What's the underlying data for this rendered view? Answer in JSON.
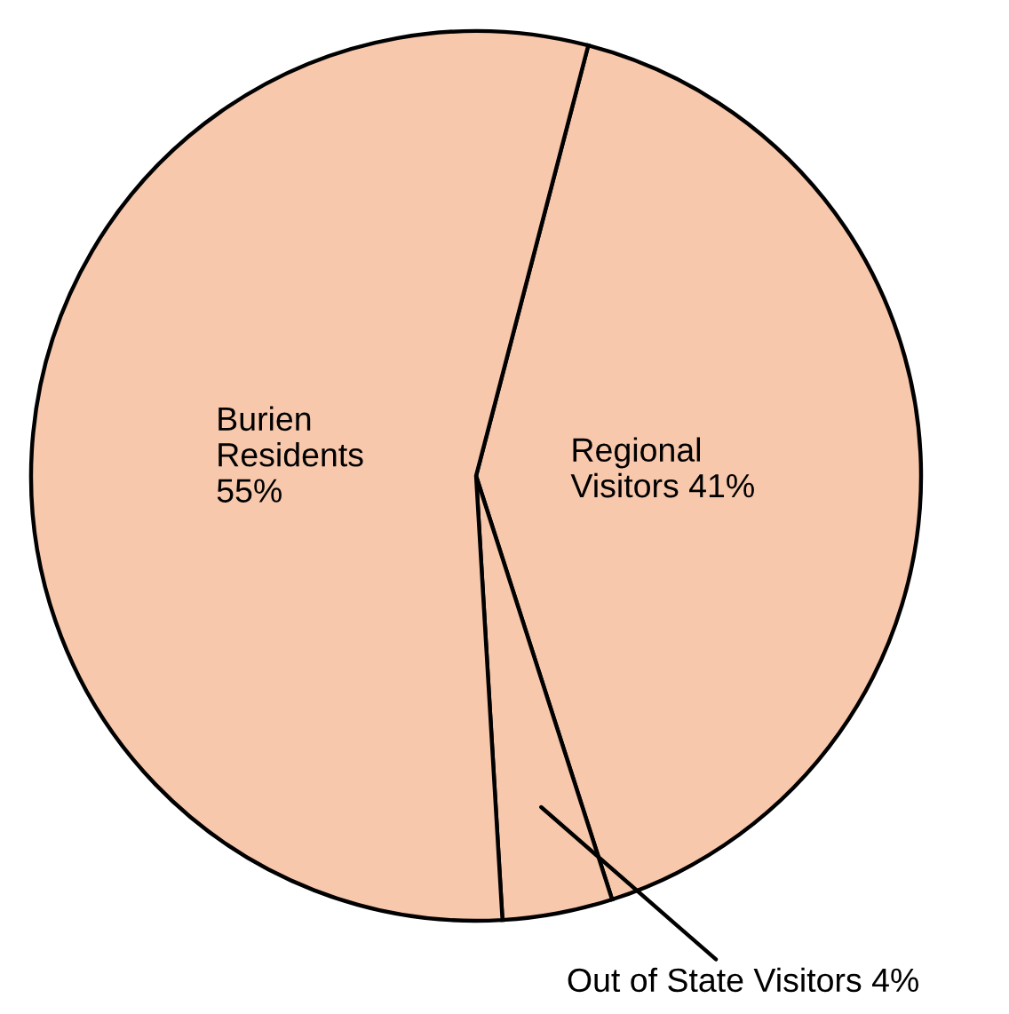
{
  "chart_data": {
    "type": "pie",
    "categories": [
      "Regional\nVisitors 41%",
      "Out of State Visitors 4%",
      "Burien\nResidents\n55%"
    ],
    "values": [
      41,
      4,
      55
    ],
    "colors": [
      "#f8c8ac",
      "#f8c8ac",
      "#f8c8ac"
    ]
  }
}
